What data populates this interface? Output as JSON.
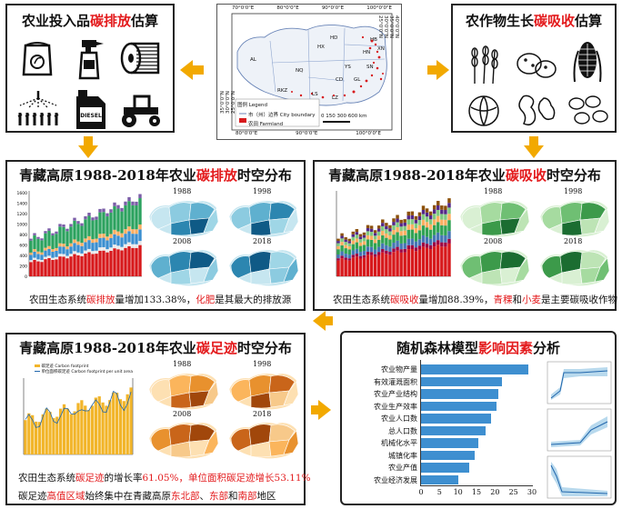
{
  "top_left": {
    "title_pre": "农业投入品",
    "title_hl": "碳排放",
    "title_post": "估算"
  },
  "top_right": {
    "title_pre": "农作物生长",
    "title_hl": "碳吸收",
    "title_post": "估算"
  },
  "map": {
    "top_ticks": [
      "70°0'0\"E",
      "80°0'0\"E",
      "90°0'0\"E",
      "100°0'0\"E"
    ],
    "bottom_ticks": [
      "80°0'0\"E",
      "90°0'0\"E",
      "100°0'0\"E"
    ],
    "left_ticks": [
      "35°0'0\"N",
      "30°0'0\"N",
      "25°0'0\"N"
    ],
    "right_ticks": [
      "40°0'0\"N",
      "35°0'0\"N",
      "30°0'0\"N",
      "25°0'0\"N"
    ],
    "legend_title": "图例 Legend",
    "legend_boundary": "市（州）边界 City boundary",
    "legend_farmland": "农田 Farmland",
    "scale_text": "0 150 300   600",
    "scale_unit": "km",
    "region_labels": [
      "AL",
      "HX",
      "NQ",
      "RKZ",
      "LS",
      "CD",
      "LZ",
      "YS",
      "HN",
      "HB",
      "XN",
      "GL",
      "HD",
      "SN"
    ]
  },
  "emission_panel": {
    "title_pre": "青藏高原1988-2018年农业",
    "title_hl": "碳排放",
    "title_post": "时空分布",
    "caption_pre": "农田生态系统",
    "caption_hl1": "碳排放",
    "caption_mid": "量增加133.38%，",
    "caption_hl2": "化肥",
    "caption_post": "是其最大的排放源",
    "years": [
      "1988",
      "1998",
      "2008",
      "2018"
    ],
    "y_ticks": [
      "1600",
      "1400",
      "1200",
      "1000",
      "800",
      "600",
      "400",
      "200",
      "0"
    ]
  },
  "absorption_panel": {
    "title_pre": "青藏高原1988-2018年农业",
    "title_hl": "碳吸收",
    "title_post": "时空分布",
    "caption_pre": "农田生态系统",
    "caption_hl1": "碳吸收",
    "caption_mid": "量增加88.39%，",
    "caption_hl2": "青稞",
    "caption_and": "和",
    "caption_hl3": "小麦",
    "caption_post": "是主要碳吸收作物",
    "years": [
      "1988",
      "1998",
      "2008",
      "2018"
    ]
  },
  "footprint_panel": {
    "title_pre": "青藏高原1988-2018年农业",
    "title_hl": "碳足迹",
    "title_post": "时空分布",
    "legend_1": "碳足迹 Carbon footprint",
    "legend_2": "单位面积碳足迹 Carbon footprint per unit area",
    "caption_pre": "农田生态系统",
    "caption_hl1": "碳足迹",
    "caption_mid": "的增长率",
    "caption_hl2": "61.05%",
    "caption_mid2": "，单位面积碳足迹增长",
    "caption_hl3": "53.11%",
    "caption2_pre": "碳足迹",
    "caption2_hl1": "高值区域",
    "caption2_mid": "始终集中在青藏高原",
    "caption2_hl2": "东北部",
    "caption2_sep": "、",
    "caption2_hl3": "东部",
    "caption2_and": "和",
    "caption2_hl4": "南部",
    "caption2_post": "地区",
    "years": [
      "1988",
      "1998",
      "2008",
      "2018"
    ]
  },
  "rf_panel": {
    "title_pre": "随机森林模型",
    "title_hl": "影响因素",
    "title_post": "分析",
    "factors": [
      "农业物产量",
      "有效灌溉面积",
      "农业产业结构",
      "农业生产效率",
      "农业人口数",
      "总人口数",
      "机械化水平",
      "城镇化率",
      "农业产值",
      "农业经济发展"
    ],
    "importance": [
      29,
      22,
      21,
      20.5,
      19,
      17.5,
      15.5,
      14.5,
      13,
      10
    ],
    "x_ticks": [
      "0",
      "5",
      "10",
      "15",
      "20",
      "25",
      "30"
    ]
  },
  "colors": {
    "arrow": "#f2a900",
    "highlight": "#e31a1c",
    "bar_blue": "#3e8fd0",
    "emission_map": "#5fb0cf",
    "absorption_map": "#6fbf73",
    "footprint_map": "#e8912e"
  }
}
